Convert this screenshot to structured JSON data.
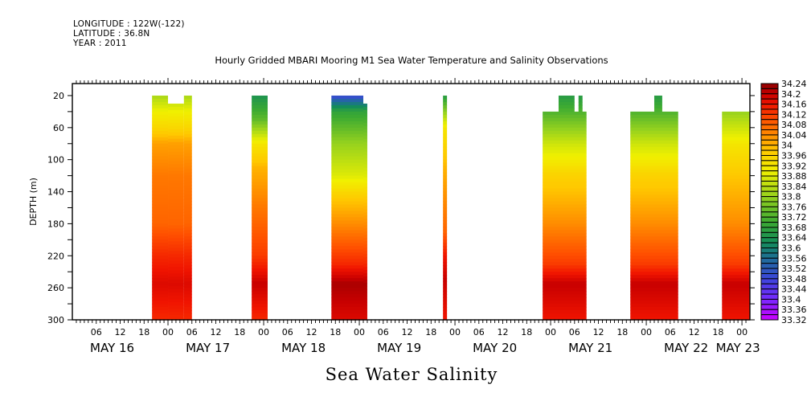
{
  "header": {
    "longitude": "LONGITUDE : 122W(-122)",
    "latitude": "LATITUDE : 36.8N",
    "year": "YEAR : 2011"
  },
  "chart_data": {
    "type": "heatmap",
    "title": "Hourly Gridded MBARI Mooring M1 Sea Water Temperature and Salinity Observations",
    "xlabel": "Sea Water Salinity",
    "ylabel": "DEPTH (m)",
    "ylim": [
      300,
      5
    ],
    "y_ticks": [
      20,
      60,
      100,
      140,
      180,
      220,
      260,
      300
    ],
    "x_range_hours": [
      0,
      170
    ],
    "x_hour_tick_labels": [
      "06",
      "12",
      "18",
      "00",
      "06",
      "12",
      "18",
      "00",
      "06",
      "12",
      "18",
      "00",
      "06",
      "12",
      "18",
      "00",
      "06",
      "12",
      "18",
      "00",
      "06",
      "12",
      "18",
      "00",
      "06",
      "12",
      "18",
      "00",
      "06",
      "12",
      "18",
      "00"
    ],
    "x_day_labels": [
      {
        "label": "MAY 16",
        "hour": 10
      },
      {
        "label": "MAY 17",
        "hour": 34
      },
      {
        "label": "MAY 18",
        "hour": 58
      },
      {
        "label": "MAY 19",
        "hour": 82
      },
      {
        "label": "MAY 20",
        "hour": 106
      },
      {
        "label": "MAY 21",
        "hour": 130
      },
      {
        "label": "MAY 22",
        "hour": 154
      },
      {
        "label": "MAY 23",
        "hour": 167
      }
    ],
    "colorbar": {
      "min": 33.32,
      "max": 34.24,
      "step": 0.02,
      "labels": [
        "34.24",
        "34.2",
        "34.16",
        "34.12",
        "34.08",
        "34.04",
        "34",
        "33.96",
        "33.92",
        "33.88",
        "33.84",
        "33.8",
        "33.76",
        "33.72",
        "33.68",
        "33.64",
        "33.6",
        "33.56",
        "33.52",
        "33.48",
        "33.44",
        "33.4",
        "33.36",
        "33.32"
      ]
    },
    "data_blocks": [
      {
        "start_hour": 20,
        "end_hour": 30,
        "top_depth": 20,
        "gap": {
          "start_hour": 24,
          "end_hour": 28,
          "to_depth": 30
        },
        "profile": [
          [
            20,
            33.82
          ],
          [
            40,
            33.9
          ],
          [
            60,
            33.95
          ],
          [
            80,
            34.02
          ],
          [
            120,
            34.06
          ],
          [
            180,
            34.08
          ],
          [
            220,
            34.14
          ],
          [
            255,
            34.18
          ],
          [
            300,
            34.14
          ]
        ]
      },
      {
        "start_hour": 45,
        "end_hour": 49,
        "top_depth": 20,
        "profile": [
          [
            20,
            33.64
          ],
          [
            50,
            33.74
          ],
          [
            80,
            33.92
          ],
          [
            110,
            34.0
          ],
          [
            160,
            34.06
          ],
          [
            220,
            34.12
          ],
          [
            255,
            34.2
          ],
          [
            300,
            34.14
          ]
        ]
      },
      {
        "start_hour": 65,
        "end_hour": 74,
        "top_depth": 20,
        "step_top": {
          "from_hour": 73,
          "depth": 30
        },
        "profile": [
          [
            20,
            33.48
          ],
          [
            40,
            33.68
          ],
          [
            80,
            33.8
          ],
          [
            120,
            33.88
          ],
          [
            150,
            33.98
          ],
          [
            190,
            34.06
          ],
          [
            230,
            34.14
          ],
          [
            255,
            34.22
          ],
          [
            300,
            34.18
          ]
        ]
      },
      {
        "start_hour": 93,
        "end_hour": 94,
        "top_depth": 20,
        "profile": [
          [
            20,
            33.66
          ],
          [
            60,
            33.92
          ],
          [
            110,
            34.0
          ],
          [
            190,
            34.08
          ],
          [
            220,
            34.16
          ],
          [
            250,
            34.2
          ],
          [
            300,
            34.16
          ]
        ]
      },
      {
        "start_hour": 118,
        "end_hour": 129,
        "top_depth": 40,
        "tabs": [
          [
            122,
            126,
            20
          ],
          [
            127,
            128,
            20
          ]
        ],
        "profile": [
          [
            20,
            33.66
          ],
          [
            40,
            33.72
          ],
          [
            80,
            33.86
          ],
          [
            120,
            33.96
          ],
          [
            180,
            34.04
          ],
          [
            230,
            34.12
          ],
          [
            255,
            34.2
          ],
          [
            300,
            34.16
          ]
        ]
      },
      {
        "start_hour": 140,
        "end_hour": 152,
        "top_depth": 40,
        "tabs": [
          [
            146,
            148,
            20
          ]
        ],
        "profile": [
          [
            20,
            33.66
          ],
          [
            40,
            33.72
          ],
          [
            80,
            33.86
          ],
          [
            120,
            33.96
          ],
          [
            180,
            34.04
          ],
          [
            230,
            34.12
          ],
          [
            255,
            34.2
          ],
          [
            300,
            34.16
          ]
        ]
      },
      {
        "start_hour": 163,
        "end_hour": 170,
        "top_depth": 40,
        "profile": [
          [
            40,
            33.8
          ],
          [
            80,
            33.92
          ],
          [
            120,
            33.98
          ],
          [
            180,
            34.04
          ],
          [
            230,
            34.12
          ],
          [
            255,
            34.2
          ],
          [
            300,
            34.16
          ]
        ]
      }
    ]
  }
}
